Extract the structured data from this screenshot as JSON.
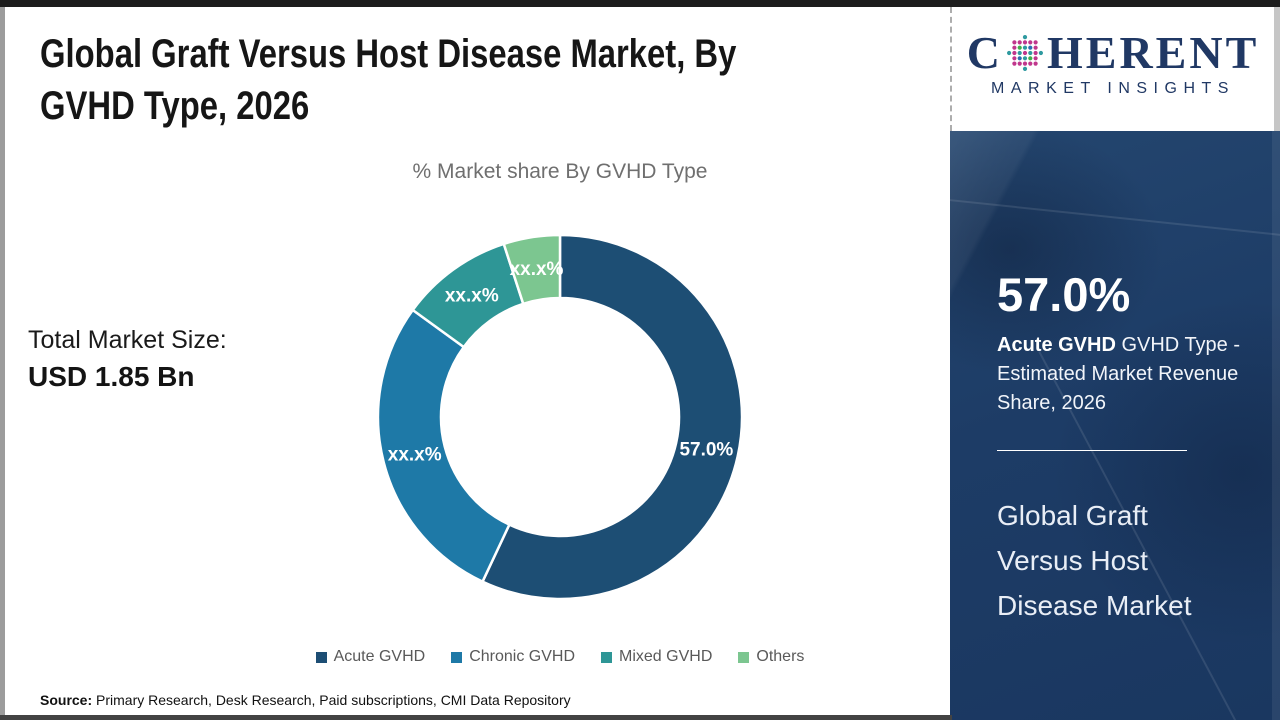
{
  "header": {
    "title_line1": "Global Graft Versus Host Disease Market, By",
    "title_line2": "GVHD Type, 2026"
  },
  "logo": {
    "brand": "Coherent Market Insights",
    "word_start": "C",
    "word_end": "HERENT",
    "tagline": "MARKET INSIGHTS",
    "text_color": "#203864",
    "globe_dot_colors": [
      "#3fae49",
      "#2e9aa0",
      "#2b6cb0",
      "#c0368c"
    ]
  },
  "left_panel": {
    "total_market_label": "Total Market Size:",
    "total_market_value": "USD 1.85 Bn"
  },
  "chart_data": {
    "type": "donut",
    "title": "% Market share By GVHD Type",
    "legend_position": "bottom",
    "label_text_color": "#ffffff",
    "segments": [
      {
        "label": "Acute GVHD",
        "display_value": "57.0%",
        "value_pct": 57.0,
        "color": "#1d4e74"
      },
      {
        "label": "Chronic GVHD",
        "display_value": "xx.x%",
        "value_pct": 28.0,
        "color": "#1e79a7"
      },
      {
        "label": "Mixed GVHD",
        "display_value": "xx.x%",
        "value_pct": 10.0,
        "color": "#2e9696"
      },
      {
        "label": "Others",
        "display_value": "xx.x%",
        "value_pct": 5.0,
        "color": "#7cc690"
      }
    ]
  },
  "sidebar": {
    "background_color": "#1c3b63",
    "stat_value": "57.0%",
    "stat_label_bold": "Acute GVHD",
    "stat_label_rest": " GVHD Type - Estimated Market Revenue Share, 2026",
    "market_name": "Global Graft Versus Host Disease Market"
  },
  "footer": {
    "source_label": "Source:",
    "source_text": " Primary Research, Desk Research, Paid subscriptions, CMI Data Repository"
  }
}
